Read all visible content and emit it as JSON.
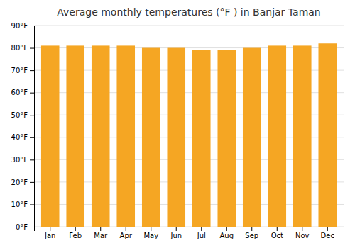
{
  "chart_data": {
    "type": "bar",
    "title": "Average monthly temperatures (°F ) in Banjar Taman",
    "categories": [
      "Jan",
      "Feb",
      "Mar",
      "Apr",
      "May",
      "Jun",
      "Jul",
      "Aug",
      "Sep",
      "Oct",
      "Nov",
      "Dec"
    ],
    "values": [
      81,
      81,
      81,
      81,
      80,
      80,
      79,
      79,
      80,
      81,
      81,
      82
    ],
    "color": "#F5A623",
    "ylim": [
      0,
      90
    ],
    "yticks": [
      {
        "value": 0,
        "label": "0°F"
      },
      {
        "value": 10,
        "label": "10°F"
      },
      {
        "value": 20,
        "label": "20°F"
      },
      {
        "value": 30,
        "label": "30°F"
      },
      {
        "value": 40,
        "label": "40°F"
      },
      {
        "value": 50,
        "label": "50°F"
      },
      {
        "value": 60,
        "label": "60°F"
      },
      {
        "value": 70,
        "label": "70°F"
      },
      {
        "value": 80,
        "label": "80°F"
      },
      {
        "value": 90,
        "label": "90°F"
      }
    ],
    "grid": true
  }
}
